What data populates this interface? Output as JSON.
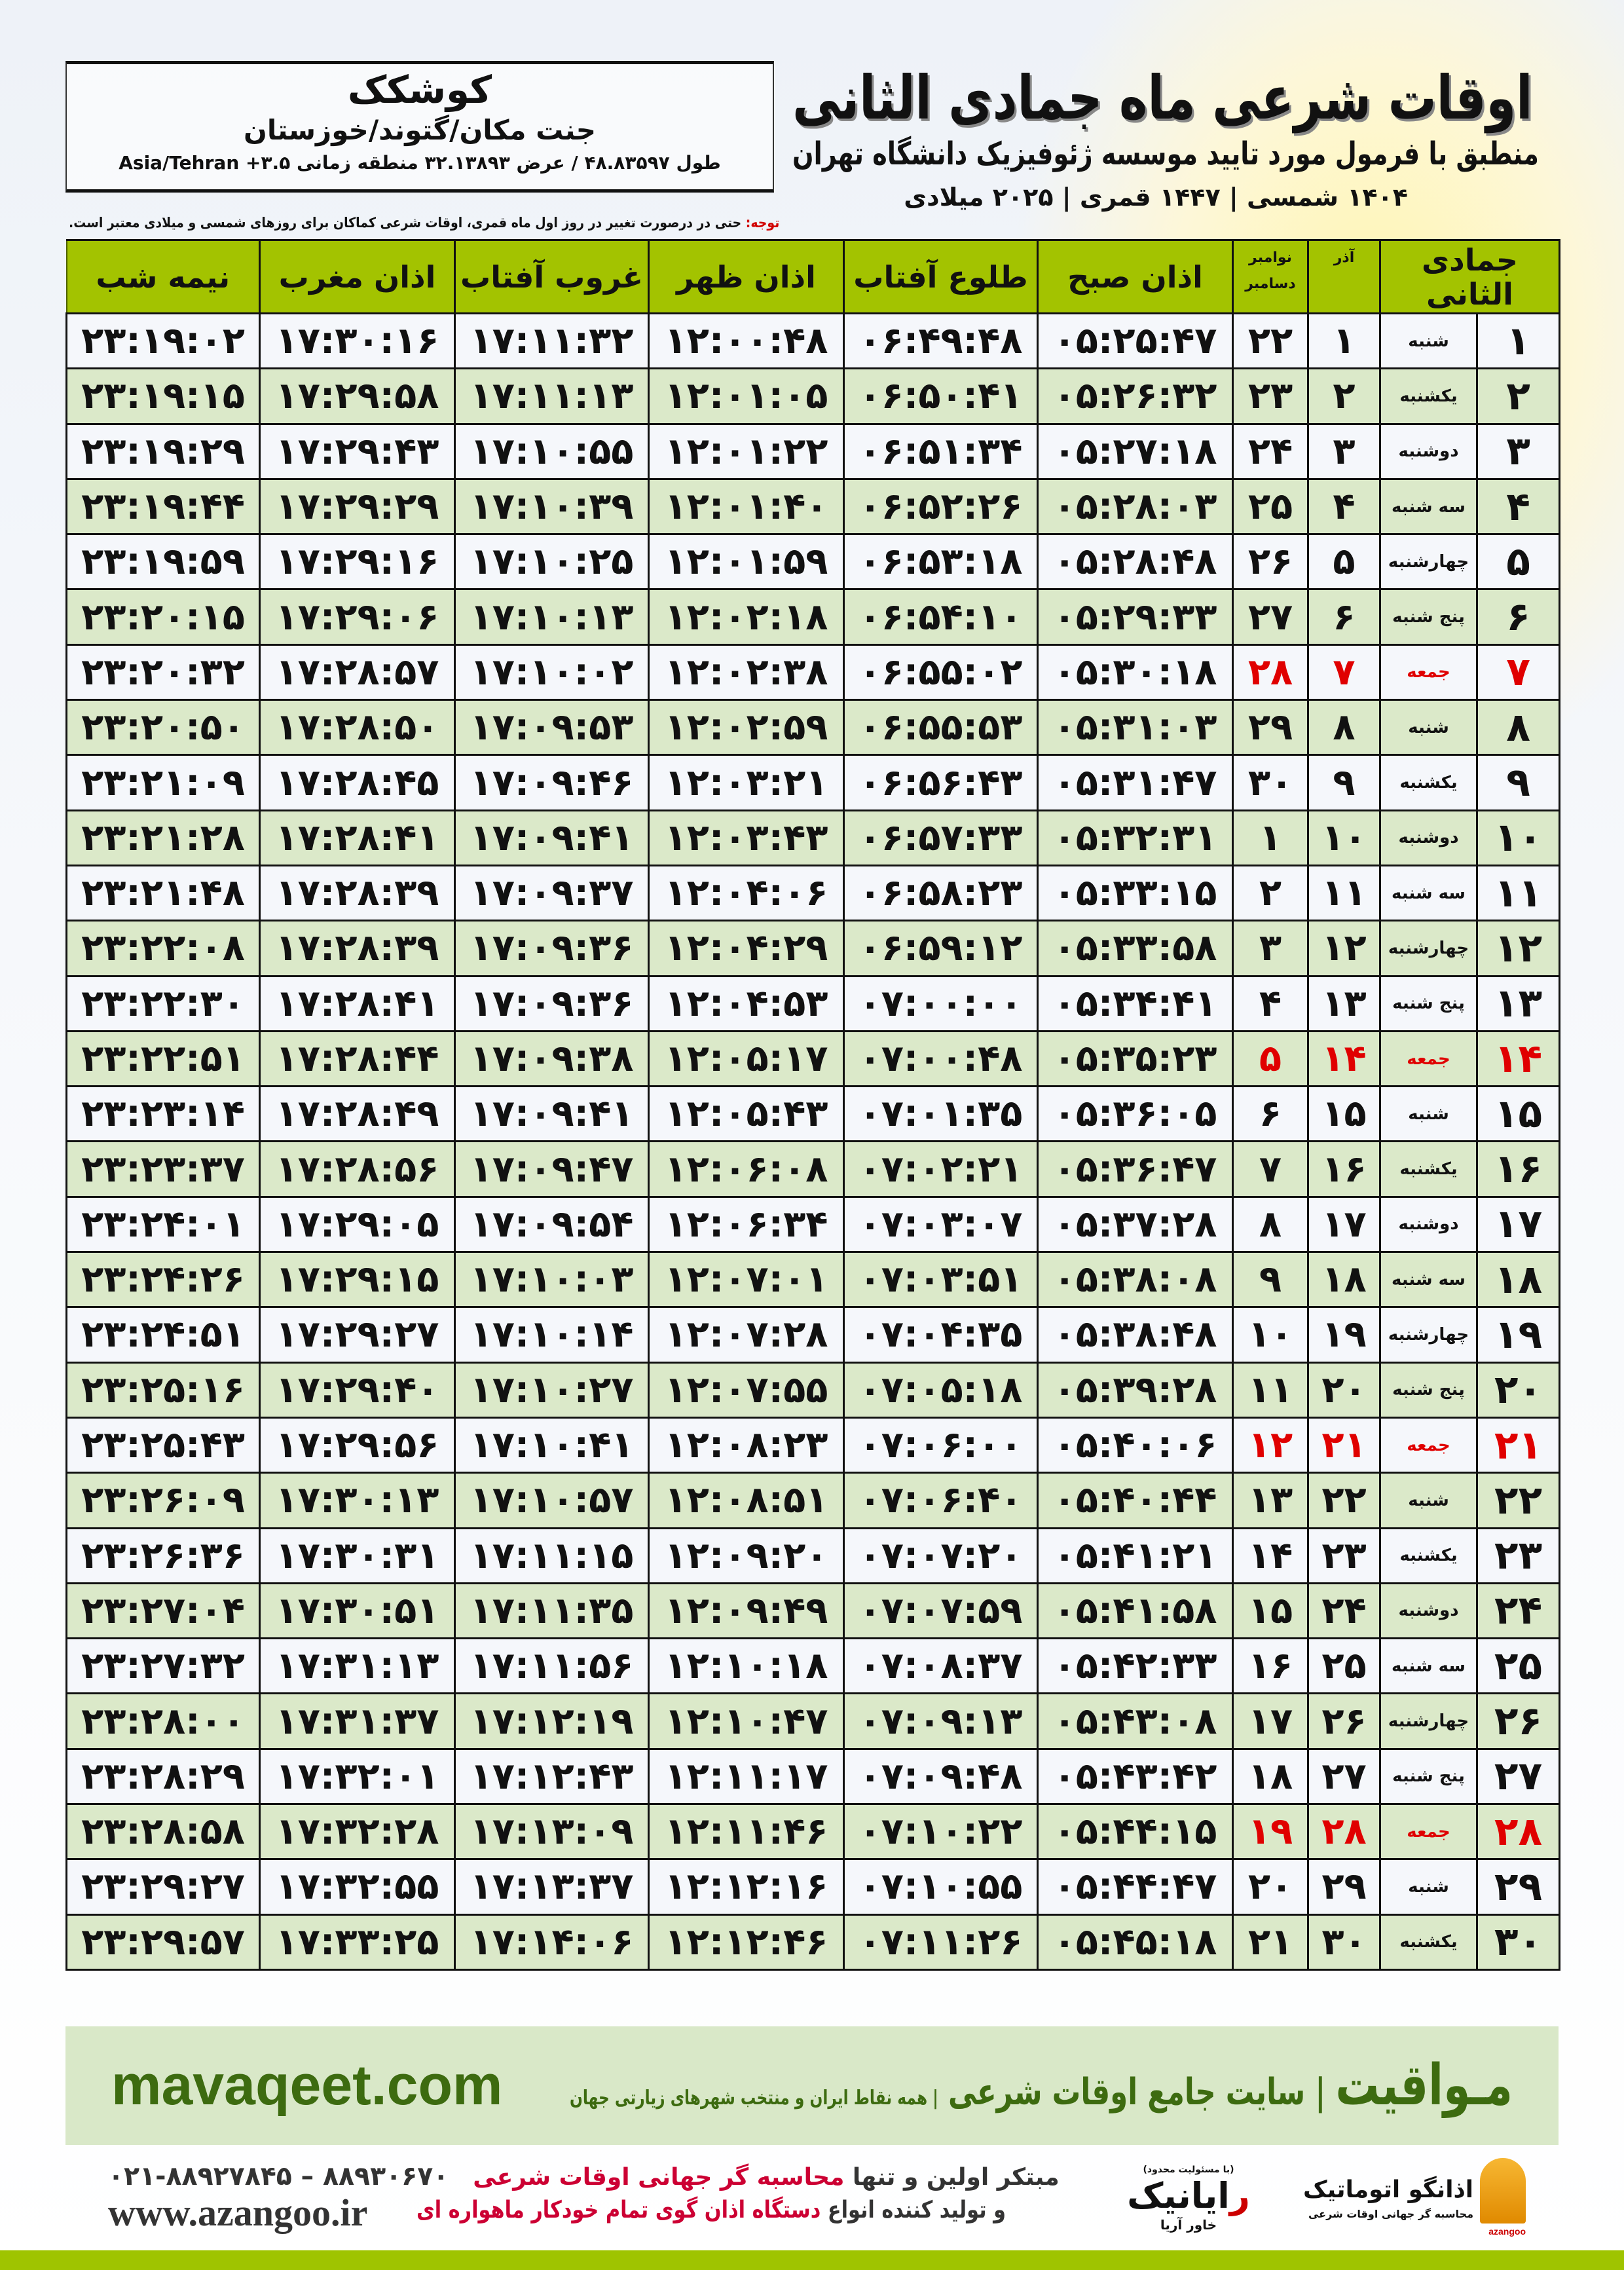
{
  "location": {
    "name": "کوشکک",
    "path": "جنت مکان/گتوند/خوزستان",
    "coords": "طول ۴۸.۸۳۵۹۷ / عرض ۳۲.۱۳۸۹۳ منطقه زمانی ۳.۵+ Asia/Tehran"
  },
  "header": {
    "title": "اوقات شرعی ماه جمادی الثانی",
    "subtitle": "منطبق با فرمول مورد تایید موسسه ژئوفیزیک دانشگاه تهران",
    "years": "۱۴۰۴ شمسی | ۱۴۴۷ قمری | ۲۰۲۵ میلادی"
  },
  "note": {
    "label": "توجه:",
    "text": " حتی در درصورت تغییر در روز اول ماه قمری، اوقات شرعی کماکان برای روزهای شمسی و میلادی معتبر است."
  },
  "colors": {
    "header_green": "#a3c300",
    "row_green": "#dbe9c9",
    "holiday_red": "#e00000",
    "brand_green": "#3d6b10"
  },
  "table": {
    "columns": {
      "hijri": "جمادی الثانی",
      "azar": "آذر",
      "greg_top": "نوامبر",
      "greg_bottom": "دسامبر",
      "sobh": "اذان صبح",
      "tolu": "طلوع آفتاب",
      "zohr": "اذان ظهر",
      "ghorub": "غروب آفتاب",
      "maghreb": "اذان مغرب",
      "nime": "نیمه شب"
    },
    "rows": [
      [
        "۱",
        "شنبه",
        "۱",
        "۲۲",
        "۰۵:۲۵:۴۷",
        "۰۶:۴۹:۴۸",
        "۱۲:۰۰:۴۸",
        "۱۷:۱۱:۳۲",
        "۱۷:۳۰:۱۶",
        "۲۳:۱۹:۰۲",
        false
      ],
      [
        "۲",
        "یکشنبه",
        "۲",
        "۲۳",
        "۰۵:۲۶:۳۲",
        "۰۶:۵۰:۴۱",
        "۱۲:۰۱:۰۵",
        "۱۷:۱۱:۱۳",
        "۱۷:۲۹:۵۸",
        "۲۳:۱۹:۱۵",
        false
      ],
      [
        "۳",
        "دوشنبه",
        "۳",
        "۲۴",
        "۰۵:۲۷:۱۸",
        "۰۶:۵۱:۳۴",
        "۱۲:۰۱:۲۲",
        "۱۷:۱۰:۵۵",
        "۱۷:۲۹:۴۳",
        "۲۳:۱۹:۲۹",
        false
      ],
      [
        "۴",
        "سه شنبه",
        "۴",
        "۲۵",
        "۰۵:۲۸:۰۳",
        "۰۶:۵۲:۲۶",
        "۱۲:۰۱:۴۰",
        "۱۷:۱۰:۳۹",
        "۱۷:۲۹:۲۹",
        "۲۳:۱۹:۴۴",
        false
      ],
      [
        "۵",
        "چهارشنبه",
        "۵",
        "۲۶",
        "۰۵:۲۸:۴۸",
        "۰۶:۵۳:۱۸",
        "۱۲:۰۱:۵۹",
        "۱۷:۱۰:۲۵",
        "۱۷:۲۹:۱۶",
        "۲۳:۱۹:۵۹",
        false
      ],
      [
        "۶",
        "پنج شنبه",
        "۶",
        "۲۷",
        "۰۵:۲۹:۳۳",
        "۰۶:۵۴:۱۰",
        "۱۲:۰۲:۱۸",
        "۱۷:۱۰:۱۳",
        "۱۷:۲۹:۰۶",
        "۲۳:۲۰:۱۵",
        false
      ],
      [
        "۷",
        "جمعه",
        "۷",
        "۲۸",
        "۰۵:۳۰:۱۸",
        "۰۶:۵۵:۰۲",
        "۱۲:۰۲:۳۸",
        "۱۷:۱۰:۰۲",
        "۱۷:۲۸:۵۷",
        "۲۳:۲۰:۳۲",
        true
      ],
      [
        "۸",
        "شنبه",
        "۸",
        "۲۹",
        "۰۵:۳۱:۰۳",
        "۰۶:۵۵:۵۳",
        "۱۲:۰۲:۵۹",
        "۱۷:۰۹:۵۳",
        "۱۷:۲۸:۵۰",
        "۲۳:۲۰:۵۰",
        false
      ],
      [
        "۹",
        "یکشنبه",
        "۹",
        "۳۰",
        "۰۵:۳۱:۴۷",
        "۰۶:۵۶:۴۳",
        "۱۲:۰۳:۲۱",
        "۱۷:۰۹:۴۶",
        "۱۷:۲۸:۴۵",
        "۲۳:۲۱:۰۹",
        false
      ],
      [
        "۱۰",
        "دوشنبه",
        "۱۰",
        "۱",
        "۰۵:۳۲:۳۱",
        "۰۶:۵۷:۳۳",
        "۱۲:۰۳:۴۳",
        "۱۷:۰۹:۴۱",
        "۱۷:۲۸:۴۱",
        "۲۳:۲۱:۲۸",
        false
      ],
      [
        "۱۱",
        "سه شنبه",
        "۱۱",
        "۲",
        "۰۵:۳۳:۱۵",
        "۰۶:۵۸:۲۳",
        "۱۲:۰۴:۰۶",
        "۱۷:۰۹:۳۷",
        "۱۷:۲۸:۳۹",
        "۲۳:۲۱:۴۸",
        false
      ],
      [
        "۱۲",
        "چهارشنبه",
        "۱۲",
        "۳",
        "۰۵:۳۳:۵۸",
        "۰۶:۵۹:۱۲",
        "۱۲:۰۴:۲۹",
        "۱۷:۰۹:۳۶",
        "۱۷:۲۸:۳۹",
        "۲۳:۲۲:۰۸",
        false
      ],
      [
        "۱۳",
        "پنج شنبه",
        "۱۳",
        "۴",
        "۰۵:۳۴:۴۱",
        "۰۷:۰۰:۰۰",
        "۱۲:۰۴:۵۳",
        "۱۷:۰۹:۳۶",
        "۱۷:۲۸:۴۱",
        "۲۳:۲۲:۳۰",
        false
      ],
      [
        "۱۴",
        "جمعه",
        "۱۴",
        "۵",
        "۰۵:۳۵:۲۳",
        "۰۷:۰۰:۴۸",
        "۱۲:۰۵:۱۷",
        "۱۷:۰۹:۳۸",
        "۱۷:۲۸:۴۴",
        "۲۳:۲۲:۵۱",
        true
      ],
      [
        "۱۵",
        "شنبه",
        "۱۵",
        "۶",
        "۰۵:۳۶:۰۵",
        "۰۷:۰۱:۳۵",
        "۱۲:۰۵:۴۳",
        "۱۷:۰۹:۴۱",
        "۱۷:۲۸:۴۹",
        "۲۳:۲۳:۱۴",
        false
      ],
      [
        "۱۶",
        "یکشنبه",
        "۱۶",
        "۷",
        "۰۵:۳۶:۴۷",
        "۰۷:۰۲:۲۱",
        "۱۲:۰۶:۰۸",
        "۱۷:۰۹:۴۷",
        "۱۷:۲۸:۵۶",
        "۲۳:۲۳:۳۷",
        false
      ],
      [
        "۱۷",
        "دوشنبه",
        "۱۷",
        "۸",
        "۰۵:۳۷:۲۸",
        "۰۷:۰۳:۰۷",
        "۱۲:۰۶:۳۴",
        "۱۷:۰۹:۵۴",
        "۱۷:۲۹:۰۵",
        "۲۳:۲۴:۰۱",
        false
      ],
      [
        "۱۸",
        "سه شنبه",
        "۱۸",
        "۹",
        "۰۵:۳۸:۰۸",
        "۰۷:۰۳:۵۱",
        "۱۲:۰۷:۰۱",
        "۱۷:۱۰:۰۳",
        "۱۷:۲۹:۱۵",
        "۲۳:۲۴:۲۶",
        false
      ],
      [
        "۱۹",
        "چهارشنبه",
        "۱۹",
        "۱۰",
        "۰۵:۳۸:۴۸",
        "۰۷:۰۴:۳۵",
        "۱۲:۰۷:۲۸",
        "۱۷:۱۰:۱۴",
        "۱۷:۲۹:۲۷",
        "۲۳:۲۴:۵۱",
        false
      ],
      [
        "۲۰",
        "پنج شنبه",
        "۲۰",
        "۱۱",
        "۰۵:۳۹:۲۸",
        "۰۷:۰۵:۱۸",
        "۱۲:۰۷:۵۵",
        "۱۷:۱۰:۲۷",
        "۱۷:۲۹:۴۰",
        "۲۳:۲۵:۱۶",
        false
      ],
      [
        "۲۱",
        "جمعه",
        "۲۱",
        "۱۲",
        "۰۵:۴۰:۰۶",
        "۰۷:۰۶:۰۰",
        "۱۲:۰۸:۲۳",
        "۱۷:۱۰:۴۱",
        "۱۷:۲۹:۵۶",
        "۲۳:۲۵:۴۳",
        true
      ],
      [
        "۲۲",
        "شنبه",
        "۲۲",
        "۱۳",
        "۰۵:۴۰:۴۴",
        "۰۷:۰۶:۴۰",
        "۱۲:۰۸:۵۱",
        "۱۷:۱۰:۵۷",
        "۱۷:۳۰:۱۳",
        "۲۳:۲۶:۰۹",
        false
      ],
      [
        "۲۳",
        "یکشنبه",
        "۲۳",
        "۱۴",
        "۰۵:۴۱:۲۱",
        "۰۷:۰۷:۲۰",
        "۱۲:۰۹:۲۰",
        "۱۷:۱۱:۱۵",
        "۱۷:۳۰:۳۱",
        "۲۳:۲۶:۳۶",
        false
      ],
      [
        "۲۴",
        "دوشنبه",
        "۲۴",
        "۱۵",
        "۰۵:۴۱:۵۸",
        "۰۷:۰۷:۵۹",
        "۱۲:۰۹:۴۹",
        "۱۷:۱۱:۳۵",
        "۱۷:۳۰:۵۱",
        "۲۳:۲۷:۰۴",
        false
      ],
      [
        "۲۵",
        "سه شنبه",
        "۲۵",
        "۱۶",
        "۰۵:۴۲:۳۳",
        "۰۷:۰۸:۳۷",
        "۱۲:۱۰:۱۸",
        "۱۷:۱۱:۵۶",
        "۱۷:۳۱:۱۳",
        "۲۳:۲۷:۳۲",
        false
      ],
      [
        "۲۶",
        "چهارشنبه",
        "۲۶",
        "۱۷",
        "۰۵:۴۳:۰۸",
        "۰۷:۰۹:۱۳",
        "۱۲:۱۰:۴۷",
        "۱۷:۱۲:۱۹",
        "۱۷:۳۱:۳۷",
        "۲۳:۲۸:۰۰",
        false
      ],
      [
        "۲۷",
        "پنج شنبه",
        "۲۷",
        "۱۸",
        "۰۵:۴۳:۴۲",
        "۰۷:۰۹:۴۸",
        "۱۲:۱۱:۱۷",
        "۱۷:۱۲:۴۳",
        "۱۷:۳۲:۰۱",
        "۲۳:۲۸:۲۹",
        false
      ],
      [
        "۲۸",
        "جمعه",
        "۲۸",
        "۱۹",
        "۰۵:۴۴:۱۵",
        "۰۷:۱۰:۲۲",
        "۱۲:۱۱:۴۶",
        "۱۷:۱۳:۰۹",
        "۱۷:۳۲:۲۸",
        "۲۳:۲۸:۵۸",
        true
      ],
      [
        "۲۹",
        "شنبه",
        "۲۹",
        "۲۰",
        "۰۵:۴۴:۴۷",
        "۰۷:۱۰:۵۵",
        "۱۲:۱۲:۱۶",
        "۱۷:۱۳:۳۷",
        "۱۷:۳۲:۵۵",
        "۲۳:۲۹:۲۷",
        false
      ],
      [
        "۳۰",
        "یکشنبه",
        "۳۰",
        "۲۱",
        "۰۵:۴۵:۱۸",
        "۰۷:۱۱:۲۶",
        "۱۲:۱۲:۴۶",
        "۱۷:۱۴:۰۶",
        "۱۷:۳۳:۲۵",
        "۲۳:۲۹:۵۷",
        false
      ]
    ]
  },
  "banner": {
    "url": "mavaqeet.com",
    "brand": "مـواقیت",
    "tagline": " | سایت جامع اوقات شرعی ",
    "sub": "| همه نقاط ایران و منتخب شهرهای زیارتی جهان"
  },
  "footer": {
    "phones": "۰۲۱-۸۸۹۲۷۸۴۵ – ۸۸۹۳۰۶۷۰",
    "url": "www.azangoo.ir",
    "line1_a": "مبتکر اولین و تنها ",
    "line1_b": "محاسبه گر جهانی اوقات شرعی",
    "line2_a": "و تولید کننده انواع ",
    "line2_b": "دستگاه اذان گوی تمام خودکار ماهواره ای",
    "rayanik_note": "(با مسئولیت محدود)",
    "rayanik_r": "ر",
    "rayanik_rest": "ایانیک",
    "rayanik_sub": "خاور آریا",
    "azangoo_name": "اذانگو اتوماتیک",
    "azangoo_sub": "محاسبه گر جهانی اوقات شرعی",
    "azangoo_latin": "azangoo"
  }
}
